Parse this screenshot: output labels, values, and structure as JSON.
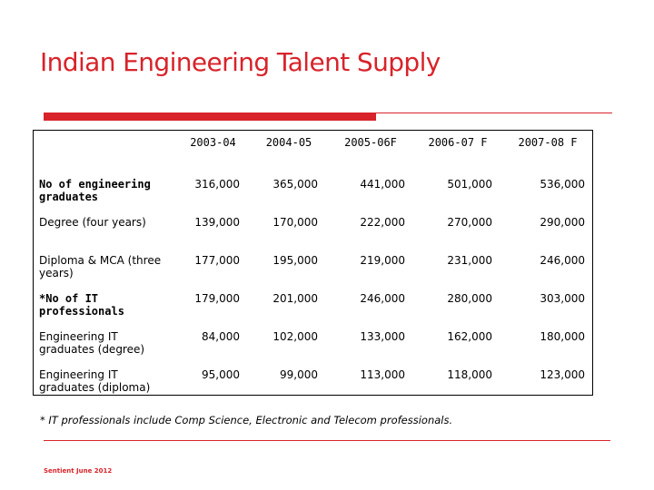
{
  "title": "Indian Engineering Talent Supply",
  "accent_color": "#d8232a",
  "table": {
    "columns": [
      "2003-04",
      "2004-05",
      "2005-06F",
      "2006-07 F",
      "2007-08 F"
    ],
    "rows": [
      {
        "label": "No of engineering graduates",
        "values": [
          "316,000",
          "365,000",
          "441,000",
          "501,000",
          "536,000"
        ]
      },
      {
        "label": "Degree (four years)",
        "values": [
          "139,000",
          "170,000",
          "222,000",
          "270,000",
          "290,000"
        ]
      },
      {
        "label": "Diploma & MCA (three years)",
        "values": [
          "177,000",
          "195,000",
          "219,000",
          "231,000",
          "246,000"
        ]
      },
      {
        "label": "*No of IT professionals",
        "values": [
          "179,000",
          "201,000",
          "246,000",
          "280,000",
          "303,000"
        ]
      },
      {
        "label": "Engineering IT graduates (degree)",
        "values": [
          "84,000",
          "102,000",
          "133,000",
          "162,000",
          "180,000"
        ]
      },
      {
        "label": "Engineering IT graduates (diploma)",
        "values": [
          "95,000",
          "99,000",
          "113,000",
          "118,000",
          "123,000"
        ]
      }
    ]
  },
  "footnote": "* IT professionals include Comp Science, Electronic and Telecom professionals.",
  "source": "Sentient June 2012"
}
